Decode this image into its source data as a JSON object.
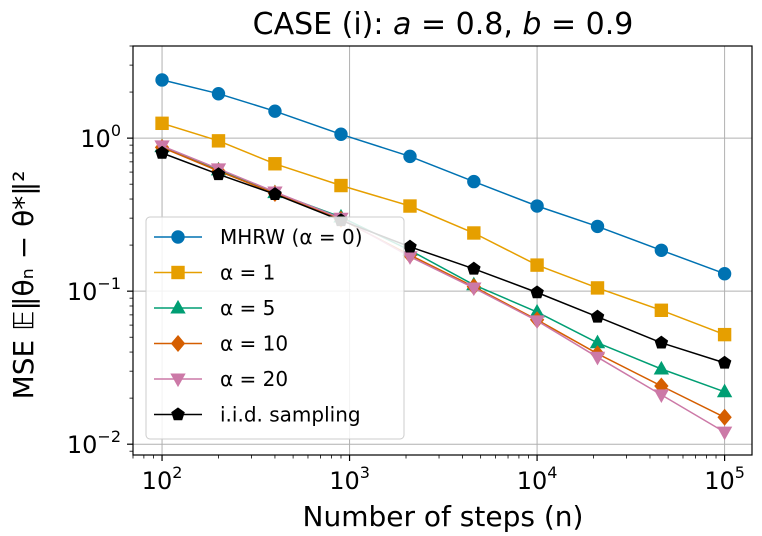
{
  "chart_data": {
    "type": "line",
    "title": "CASE (i): a = 0.8, b = 0.9",
    "title_parts": {
      "prefix": "CASE (i): ",
      "var_a": "a",
      "eq_a": " = 0.8, ",
      "var_b": "b",
      "eq_b": " = 0.9"
    },
    "xlabel": "Number of steps (n)",
    "ylabel": "MSE 𝔼‖θₙ − θ*‖²",
    "x_scale": "log",
    "y_scale": "log",
    "xlim": [
      70,
      140000
    ],
    "ylim": [
      0.0085,
      4.0
    ],
    "grid": true,
    "legend_position": "lower-left",
    "x_ticks": [
      {
        "value": 100,
        "base": "10",
        "exp": "2"
      },
      {
        "value": 1000,
        "base": "10",
        "exp": "3"
      },
      {
        "value": 10000,
        "base": "10",
        "exp": "4"
      },
      {
        "value": 100000,
        "base": "10",
        "exp": "5"
      }
    ],
    "y_ticks": [
      {
        "value": 0.01,
        "base": "10",
        "exp": "−2"
      },
      {
        "value": 0.1,
        "base": "10",
        "exp": "−1"
      },
      {
        "value": 1,
        "base": "10",
        "exp": "0"
      }
    ],
    "marker_x": [
      100,
      200,
      400,
      900,
      2100,
      4600,
      10000,
      21000,
      46000,
      100000
    ],
    "series": [
      {
        "name": "MHRW (α = 0)",
        "color": "#0072B2",
        "marker": "circle",
        "values": [
          2.4,
          1.95,
          1.5,
          1.06,
          0.76,
          0.52,
          0.36,
          0.265,
          0.185,
          0.13
        ]
      },
      {
        "name": "α = 1",
        "color": "#E69F00",
        "marker": "square",
        "values": [
          1.25,
          0.96,
          0.68,
          0.49,
          0.36,
          0.24,
          0.148,
          0.105,
          0.075,
          0.052
        ]
      },
      {
        "name": "α = 5",
        "color": "#009E73",
        "marker": "triangle-up",
        "values": [
          0.88,
          0.62,
          0.44,
          0.305,
          0.185,
          0.11,
          0.073,
          0.046,
          0.031,
          0.022
        ]
      },
      {
        "name": "α = 10",
        "color": "#D55E00",
        "marker": "diamond",
        "values": [
          0.87,
          0.61,
          0.435,
          0.295,
          0.172,
          0.107,
          0.065,
          0.039,
          0.024,
          0.015
        ]
      },
      {
        "name": "α = 20",
        "color": "#CC79A7",
        "marker": "triangle-down",
        "values": [
          0.89,
          0.63,
          0.445,
          0.3,
          0.168,
          0.105,
          0.064,
          0.037,
          0.021,
          0.012
        ]
      },
      {
        "name": "i.i.d. sampling",
        "color": "#000000",
        "marker": "pentagon",
        "values": [
          0.8,
          0.58,
          0.43,
          0.29,
          0.195,
          0.14,
          0.098,
          0.068,
          0.046,
          0.034
        ]
      }
    ]
  }
}
